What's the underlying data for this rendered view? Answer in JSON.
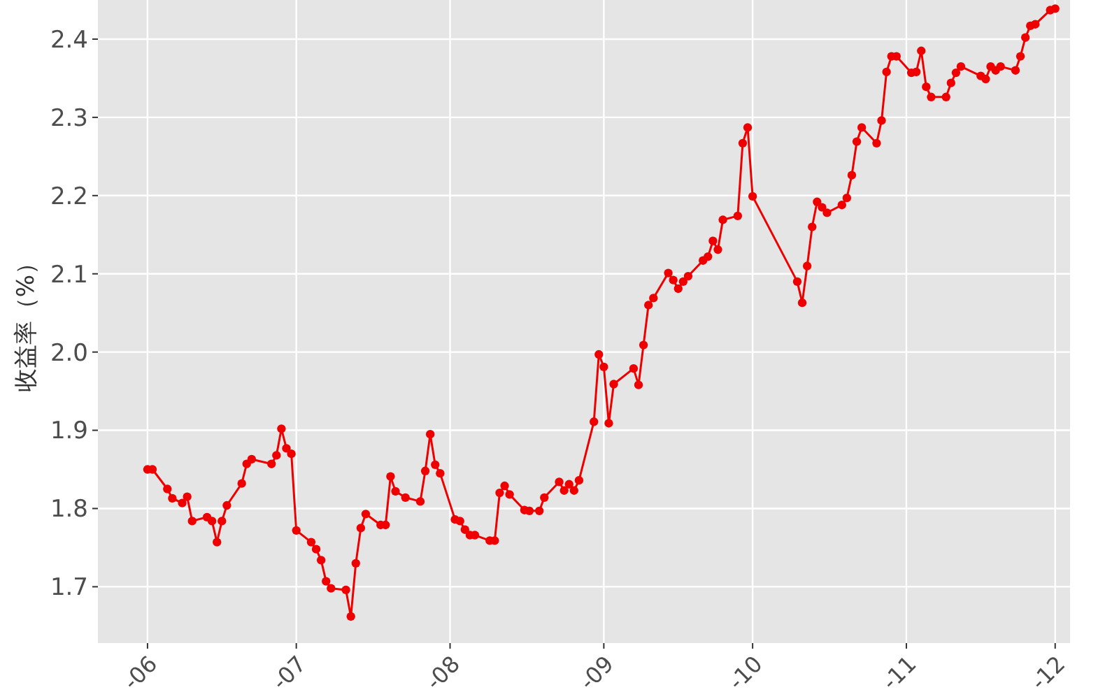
{
  "chart_data": {
    "type": "line",
    "ylabel": "收益率（%）",
    "grid": true,
    "marker": "circle",
    "line_style": "solid",
    "xlim": [
      "--05-22",
      "--12-04"
    ],
    "ylim": [
      1.628,
      2.45
    ],
    "xticks": [
      {
        "value": "--06-01",
        "label": "-06"
      },
      {
        "value": "--07-01",
        "label": "-07"
      },
      {
        "value": "--08-01",
        "label": "-08"
      },
      {
        "value": "--09-01",
        "label": "-09"
      },
      {
        "value": "--10-01",
        "label": "-10"
      },
      {
        "value": "--11-01",
        "label": "-11"
      },
      {
        "value": "--12-01",
        "label": "-12"
      }
    ],
    "yticks": [
      1.7,
      1.8,
      1.9,
      {
        "value": 2,
        "label": "2.0"
      },
      2.1,
      2.2,
      2.3,
      2.4
    ],
    "x": [
      "--06-01",
      "--06-02",
      "--06-05",
      "--06-06",
      "--06-08",
      "--06-09",
      "--06-10",
      "--06-13",
      "--06-14",
      "--06-15",
      "--06-16",
      "--06-17",
      "--06-20",
      "--06-21",
      "--06-22",
      "--06-26",
      "--06-27",
      "--06-28",
      "--06-29",
      "--06-30",
      "--07-01",
      "--07-04",
      "--07-05",
      "--07-06",
      "--07-07",
      "--07-08",
      "--07-11",
      "--07-12",
      "--07-13",
      "--07-14",
      "--07-15",
      "--07-18",
      "--07-19",
      "--07-20",
      "--07-21",
      "--07-23",
      "--07-26",
      "--07-27",
      "--07-28",
      "--07-29",
      "--07-30",
      "--08-02",
      "--08-03",
      "--08-04",
      "--08-05",
      "--08-06",
      "--08-09",
      "--08-10",
      "--08-11",
      "--08-12",
      "--08-13",
      "--08-16",
      "--08-17",
      "--08-19",
      "--08-20",
      "--08-23",
      "--08-24",
      "--08-25",
      "--08-26",
      "--08-27",
      "--08-30",
      "--08-31",
      "--09-01",
      "--09-02",
      "--09-03",
      "--09-07",
      "--09-08",
      "--09-09",
      "--09-10",
      "--09-11",
      "--09-14",
      "--09-15",
      "--09-16",
      "--09-17",
      "--09-18",
      "--09-21",
      "--09-22",
      "--09-23",
      "--09-24",
      "--09-25",
      "--09-28",
      "--09-29",
      "--09-30",
      "--10-01",
      "--10-10",
      "--10-11",
      "--10-12",
      "--10-13",
      "--10-14",
      "--10-15",
      "--10-16",
      "--10-19",
      "--10-20",
      "--10-21",
      "--10-22",
      "--10-23",
      "--10-26",
      "--10-27",
      "--10-28",
      "--10-29",
      "--10-30",
      "--11-02",
      "--11-03",
      "--11-04",
      "--11-05",
      "--11-06",
      "--11-09",
      "--11-10",
      "--11-11",
      "--11-12",
      "--11-16",
      "--11-17",
      "--11-18",
      "--11-19",
      "--11-20",
      "--11-23",
      "--11-24",
      "--11-25",
      "--11-26",
      "--11-27",
      "--11-30",
      "--12-01"
    ],
    "series": [
      {
        "color": "#ee0000",
        "values": [
          1.85,
          1.85,
          1.825,
          1.813,
          1.807,
          1.815,
          1.784,
          1.789,
          1.784,
          1.757,
          1.784,
          1.804,
          1.832,
          1.857,
          1.863,
          1.857,
          1.868,
          1.902,
          1.877,
          1.87,
          1.772,
          1.757,
          1.748,
          1.734,
          1.707,
          1.698,
          1.696,
          1.662,
          1.73,
          1.775,
          1.793,
          1.779,
          1.779,
          1.841,
          1.822,
          1.814,
          1.809,
          1.848,
          1.895,
          1.856,
          1.845,
          1.786,
          1.784,
          1.773,
          1.766,
          1.766,
          1.759,
          1.759,
          1.82,
          1.829,
          1.818,
          1.798,
          1.797,
          1.797,
          1.814,
          1.834,
          1.823,
          1.831,
          1.823,
          1.836,
          1.911,
          1.997,
          1.981,
          1.909,
          1.959,
          1.979,
          1.958,
          2.009,
          2.06,
          2.069,
          2.101,
          2.092,
          2.081,
          2.09,
          2.097,
          2.117,
          2.122,
          2.142,
          2.131,
          2.169,
          2.174,
          2.267,
          2.287,
          2.199,
          2.09,
          2.063,
          2.11,
          2.16,
          2.192,
          2.185,
          2.178,
          2.188,
          2.197,
          2.226,
          2.269,
          2.287,
          2.267,
          2.296,
          2.358,
          2.378,
          2.378,
          2.357,
          2.358,
          2.385,
          2.339,
          2.326,
          2.326,
          2.344,
          2.357,
          2.365,
          2.353,
          2.349,
          2.365,
          2.36,
          2.365,
          2.36,
          2.378,
          2.402,
          2.417,
          2.419,
          2.437,
          2.439
        ]
      }
    ]
  }
}
